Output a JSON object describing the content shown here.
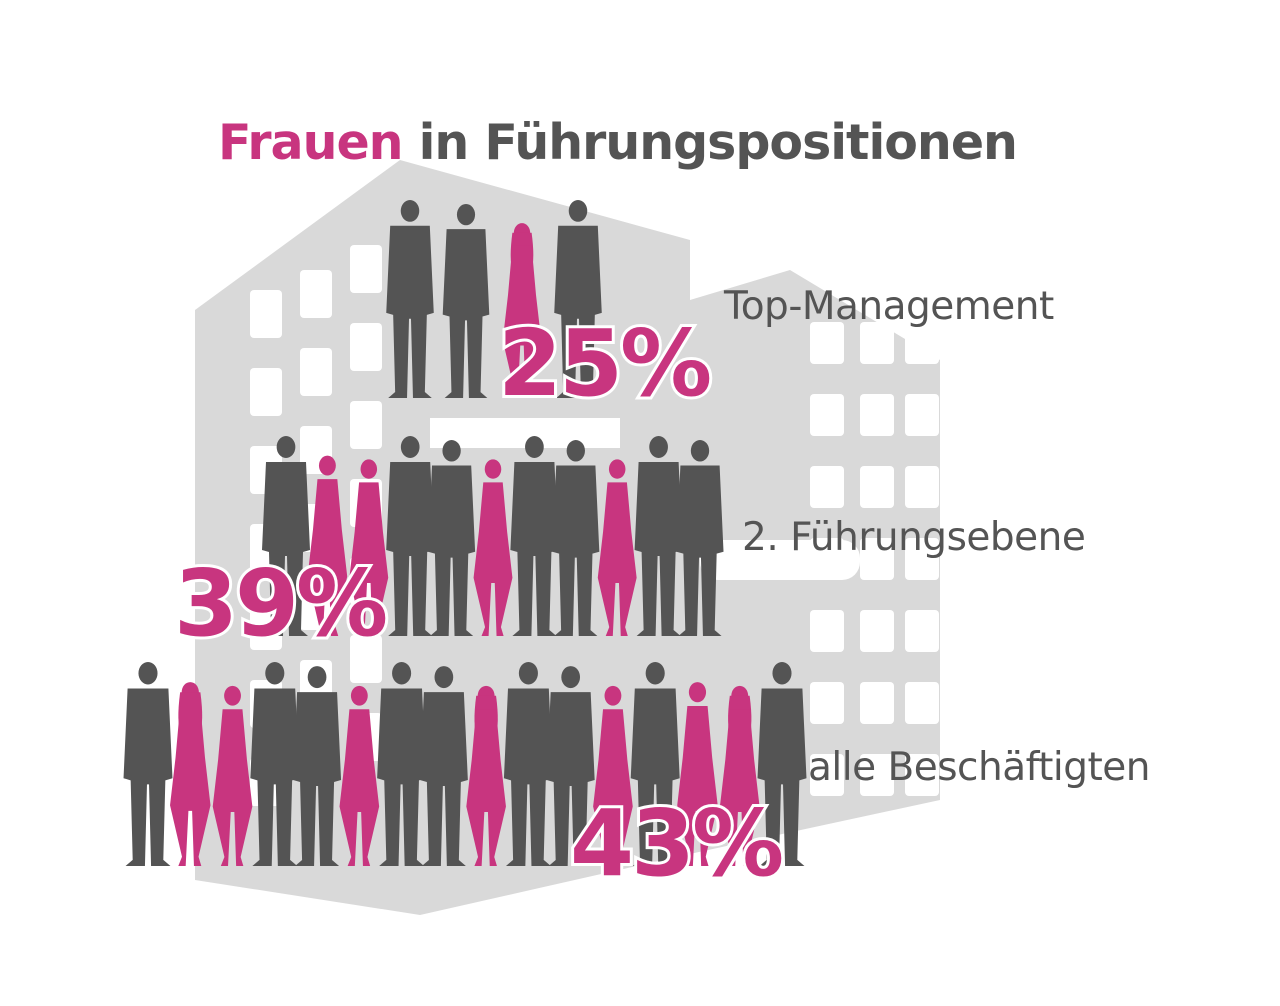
{
  "title": {
    "highlight": "Frauen",
    "rest": "in Führungspositionen"
  },
  "colors": {
    "women": "#c8357f",
    "men": "#545454",
    "building": "#d9d9d9",
    "background": "#ffffff"
  },
  "levels": [
    {
      "label": "Top-Management",
      "value": 25,
      "value_text": "25%",
      "figures": [
        "man",
        "man",
        "woman",
        "man"
      ]
    },
    {
      "label": "2. Führungsebene",
      "value": 39,
      "value_text": "39%",
      "figures": [
        "man",
        "woman",
        "woman",
        "man",
        "man",
        "woman",
        "man",
        "man",
        "woman",
        "man",
        "man"
      ]
    },
    {
      "label": "alle Beschäftigten",
      "value": 43,
      "value_text": "43%",
      "figures": [
        "man",
        "woman",
        "woman",
        "man",
        "man",
        "woman",
        "man",
        "man",
        "woman",
        "man",
        "man",
        "woman",
        "man",
        "woman",
        "woman",
        "man"
      ]
    }
  ],
  "icons": {
    "background": "office-building-icon",
    "figure_man": "man-silhouette-icon",
    "figure_woman": "woman-silhouette-icon"
  }
}
